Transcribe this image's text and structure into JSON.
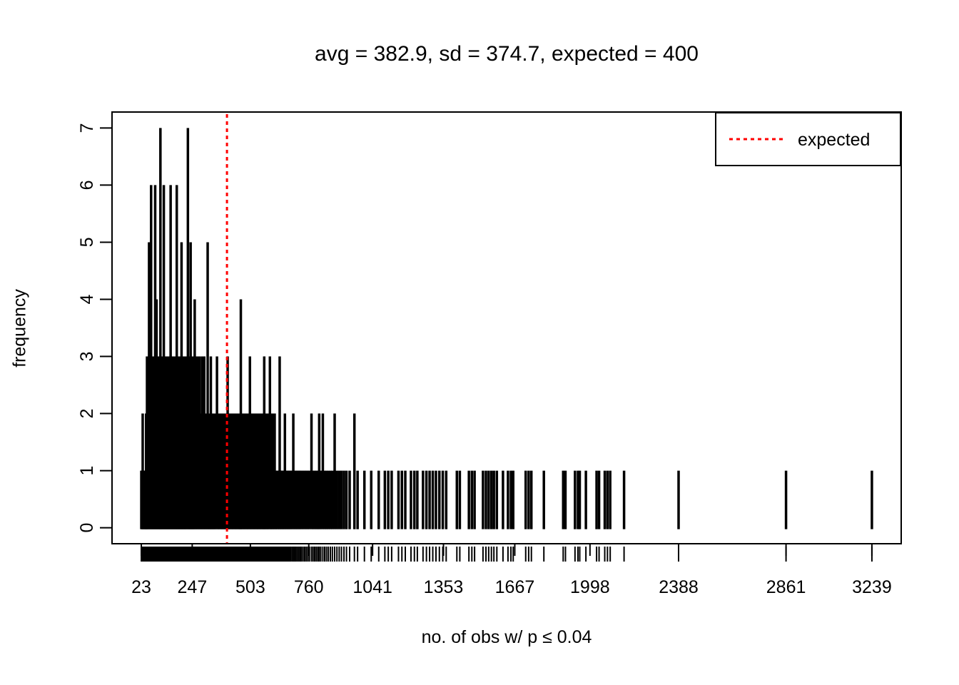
{
  "chart_data": {
    "type": "bar",
    "subtype": "spike-frequency-plot-with-rug",
    "title": "avg = 382.9, sd = 374.7, expected = 400",
    "stats": {
      "avg": 382.9,
      "sd": 374.7,
      "expected": 400
    },
    "xlabel": "no. of obs w/ p ≤ 0.04",
    "ylabel": "frequency",
    "x_ticks": [
      23,
      247,
      503,
      760,
      1041,
      1353,
      1667,
      1998,
      2388,
      2861,
      3239
    ],
    "y_ticks": [
      0,
      1,
      2,
      3,
      4,
      5,
      6,
      7
    ],
    "xlim": [
      -106,
      3368
    ],
    "ylim": [
      -0.28,
      7.28
    ],
    "grid": false,
    "rug": true,
    "spike_color": "#000000",
    "axis_color": "#000000",
    "expected_line": {
      "value": 400,
      "color": "#FF0000",
      "style": "dotted"
    },
    "legend": {
      "label": "expected",
      "position": "top-right",
      "line_color": "#FF0000",
      "line_style": "dotted"
    },
    "spikes": [
      [
        23,
        1
      ],
      [
        26,
        1
      ],
      [
        29,
        2
      ],
      [
        32,
        1
      ],
      [
        35,
        1
      ],
      [
        38,
        1
      ],
      [
        41,
        1
      ],
      [
        44,
        2
      ],
      [
        45,
        2
      ],
      [
        48,
        3
      ],
      [
        51,
        2
      ],
      [
        54,
        2
      ],
      [
        57,
        5
      ],
      [
        60,
        3
      ],
      [
        63,
        2
      ],
      [
        66,
        6
      ],
      [
        69,
        2
      ],
      [
        72,
        3
      ],
      [
        75,
        2
      ],
      [
        78,
        3
      ],
      [
        81,
        2
      ],
      [
        84,
        6
      ],
      [
        87,
        3
      ],
      [
        90,
        4
      ],
      [
        93,
        2
      ],
      [
        96,
        3
      ],
      [
        99,
        2
      ],
      [
        102,
        3
      ],
      [
        105,
        2
      ],
      [
        107,
        7
      ],
      [
        110,
        3
      ],
      [
        113,
        2
      ],
      [
        116,
        3
      ],
      [
        119,
        2
      ],
      [
        122,
        6
      ],
      [
        125,
        3
      ],
      [
        128,
        2
      ],
      [
        131,
        3
      ],
      [
        134,
        2
      ],
      [
        137,
        3
      ],
      [
        140,
        2
      ],
      [
        143,
        3
      ],
      [
        146,
        2
      ],
      [
        149,
        3
      ],
      [
        152,
        6
      ],
      [
        155,
        2
      ],
      [
        158,
        3
      ],
      [
        161,
        2
      ],
      [
        164,
        3
      ],
      [
        167,
        2
      ],
      [
        170,
        3
      ],
      [
        173,
        2
      ],
      [
        176,
        3
      ],
      [
        179,
        6
      ],
      [
        182,
        3
      ],
      [
        185,
        2
      ],
      [
        188,
        3
      ],
      [
        191,
        2
      ],
      [
        194,
        3
      ],
      [
        197,
        2
      ],
      [
        200,
        5
      ],
      [
        203,
        3
      ],
      [
        206,
        2
      ],
      [
        209,
        3
      ],
      [
        212,
        2
      ],
      [
        215,
        3
      ],
      [
        218,
        2
      ],
      [
        221,
        3
      ],
      [
        224,
        2
      ],
      [
        228,
        7
      ],
      [
        231,
        3
      ],
      [
        234,
        2
      ],
      [
        237,
        3
      ],
      [
        240,
        5
      ],
      [
        243,
        2
      ],
      [
        246,
        3
      ],
      [
        249,
        2
      ],
      [
        252,
        3
      ],
      [
        255,
        2
      ],
      [
        258,
        4
      ],
      [
        262,
        3
      ],
      [
        265,
        2
      ],
      [
        269,
        3
      ],
      [
        272,
        2
      ],
      [
        276,
        2
      ],
      [
        279,
        3
      ],
      [
        283,
        2
      ],
      [
        286,
        2
      ],
      [
        290,
        3
      ],
      [
        293,
        2
      ],
      [
        297,
        2
      ],
      [
        300,
        3
      ],
      [
        304,
        2
      ],
      [
        307,
        2
      ],
      [
        311,
        2
      ],
      [
        315,
        5
      ],
      [
        318,
        2
      ],
      [
        322,
        2
      ],
      [
        325,
        2
      ],
      [
        329,
        3
      ],
      [
        332,
        2
      ],
      [
        336,
        2
      ],
      [
        340,
        2
      ],
      [
        343,
        2
      ],
      [
        347,
        2
      ],
      [
        351,
        2
      ],
      [
        356,
        3
      ],
      [
        360,
        2
      ],
      [
        364,
        2
      ],
      [
        368,
        2
      ],
      [
        372,
        2
      ],
      [
        376,
        2
      ],
      [
        380,
        2
      ],
      [
        384,
        2
      ],
      [
        388,
        2
      ],
      [
        392,
        2
      ],
      [
        396,
        2
      ],
      [
        400,
        2
      ],
      [
        403,
        3
      ],
      [
        407,
        2
      ],
      [
        411,
        2
      ],
      [
        415,
        2
      ],
      [
        419,
        2
      ],
      [
        423,
        2
      ],
      [
        427,
        2
      ],
      [
        431,
        2
      ],
      [
        435,
        2
      ],
      [
        439,
        2
      ],
      [
        443,
        2
      ],
      [
        447,
        2
      ],
      [
        451,
        2
      ],
      [
        455,
        2
      ],
      [
        459,
        2
      ],
      [
        461,
        4
      ],
      [
        465,
        2
      ],
      [
        469,
        2
      ],
      [
        473,
        2
      ],
      [
        477,
        2
      ],
      [
        481,
        2
      ],
      [
        485,
        2
      ],
      [
        489,
        2
      ],
      [
        493,
        2
      ],
      [
        497,
        2
      ],
      [
        501,
        3
      ],
      [
        505,
        2
      ],
      [
        509,
        2
      ],
      [
        513,
        2
      ],
      [
        517,
        2
      ],
      [
        521,
        2
      ],
      [
        525,
        2
      ],
      [
        529,
        2
      ],
      [
        533,
        2
      ],
      [
        537,
        2
      ],
      [
        541,
        2
      ],
      [
        545,
        2
      ],
      [
        549,
        2
      ],
      [
        553,
        2
      ],
      [
        557,
        2
      ],
      [
        561,
        2
      ],
      [
        564,
        3
      ],
      [
        568,
        2
      ],
      [
        572,
        2
      ],
      [
        576,
        2
      ],
      [
        580,
        2
      ],
      [
        584,
        2
      ],
      [
        589,
        3
      ],
      [
        593,
        2
      ],
      [
        597,
        2
      ],
      [
        601,
        1
      ],
      [
        605,
        2
      ],
      [
        610,
        2
      ],
      [
        614,
        1
      ],
      [
        618,
        1
      ],
      [
        623,
        1
      ],
      [
        628,
        1
      ],
      [
        632,
        3
      ],
      [
        637,
        1
      ],
      [
        641,
        1
      ],
      [
        646,
        1
      ],
      [
        650,
        1
      ],
      [
        655,
        2
      ],
      [
        660,
        1
      ],
      [
        665,
        1
      ],
      [
        670,
        1
      ],
      [
        675,
        1
      ],
      [
        680,
        1
      ],
      [
        686,
        1
      ],
      [
        692,
        2
      ],
      [
        698,
        1
      ],
      [
        704,
        1
      ],
      [
        710,
        1
      ],
      [
        716,
        1
      ],
      [
        722,
        1
      ],
      [
        728,
        1
      ],
      [
        735,
        1
      ],
      [
        742,
        1
      ],
      [
        749,
        1
      ],
      [
        756,
        1
      ],
      [
        763,
        1
      ],
      [
        772,
        2
      ],
      [
        779,
        1
      ],
      [
        786,
        1
      ],
      [
        793,
        1
      ],
      [
        800,
        1
      ],
      [
        806,
        2
      ],
      [
        813,
        1
      ],
      [
        822,
        2
      ],
      [
        830,
        1
      ],
      [
        838,
        1
      ],
      [
        846,
        1
      ],
      [
        855,
        1
      ],
      [
        864,
        1
      ],
      [
        874,
        2
      ],
      [
        884,
        1
      ],
      [
        894,
        1
      ],
      [
        904,
        1
      ],
      [
        915,
        1
      ],
      [
        926,
        1
      ],
      [
        940,
        1
      ],
      [
        961,
        2
      ],
      [
        975,
        1
      ],
      [
        1005,
        1
      ],
      [
        1035,
        1
      ],
      [
        1068,
        1
      ],
      [
        1095,
        1
      ],
      [
        1110,
        1
      ],
      [
        1125,
        1
      ],
      [
        1155,
        1
      ],
      [
        1170,
        1
      ],
      [
        1185,
        1
      ],
      [
        1210,
        1
      ],
      [
        1225,
        1
      ],
      [
        1238,
        1
      ],
      [
        1263,
        1
      ],
      [
        1278,
        1
      ],
      [
        1292,
        1
      ],
      [
        1306,
        1
      ],
      [
        1320,
        1
      ],
      [
        1335,
        1
      ],
      [
        1350,
        1
      ],
      [
        1365,
        1
      ],
      [
        1412,
        1
      ],
      [
        1425,
        1
      ],
      [
        1465,
        1
      ],
      [
        1478,
        1
      ],
      [
        1490,
        1
      ],
      [
        1527,
        1
      ],
      [
        1540,
        1
      ],
      [
        1552,
        1
      ],
      [
        1564,
        1
      ],
      [
        1575,
        1
      ],
      [
        1588,
        1
      ],
      [
        1615,
        1
      ],
      [
        1637,
        1
      ],
      [
        1650,
        1
      ],
      [
        1660,
        1
      ],
      [
        1715,
        1
      ],
      [
        1728,
        1
      ],
      [
        1740,
        1
      ],
      [
        1795,
        1
      ],
      [
        1880,
        1
      ],
      [
        1890,
        1
      ],
      [
        1932,
        1
      ],
      [
        1945,
        1
      ],
      [
        1953,
        1
      ],
      [
        1980,
        1
      ],
      [
        2027,
        1
      ],
      [
        2038,
        1
      ],
      [
        2063,
        1
      ],
      [
        2075,
        1
      ],
      [
        2087,
        1
      ],
      [
        2148,
        1
      ],
      [
        2388,
        1
      ],
      [
        2861,
        1
      ],
      [
        3239,
        1
      ]
    ]
  }
}
